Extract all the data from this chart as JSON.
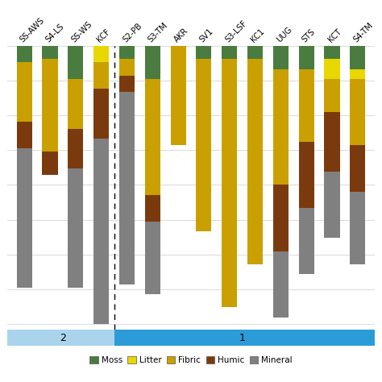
{
  "sites": [
    "SS-AWS",
    "S4-LS",
    "SS-WS",
    "KCF",
    "S2-PB",
    "S3-TM",
    "AKR",
    "SV1",
    "S3-LSF",
    "KC1",
    "UUG",
    "STS",
    "KCT",
    "S4-TM"
  ],
  "colors": {
    "Moss": "#4a7c3f",
    "Litter": "#e8d800",
    "Fibric": "#c9a000",
    "Humic": "#7b3a0e",
    "Mineral": "#808080"
  },
  "legend_order": [
    "Moss",
    "Litter",
    "Fibric",
    "Humic",
    "Mineral"
  ],
  "bar_data": {
    "SS-AWS": {
      "Moss": 5,
      "Litter": 0,
      "Fibric": 18,
      "Humic": 8,
      "Mineral": 42
    },
    "S4-LS": {
      "Moss": 4,
      "Litter": 0,
      "Fibric": 28,
      "Humic": 7,
      "Mineral": 0
    },
    "SS-WS": {
      "Moss": 10,
      "Litter": 0,
      "Fibric": 15,
      "Humic": 12,
      "Mineral": 36
    },
    "KCF": {
      "Moss": 0,
      "Litter": 5,
      "Fibric": 8,
      "Humic": 15,
      "Mineral": 56
    },
    "S2-PB": {
      "Moss": 4,
      "Litter": 0,
      "Fibric": 5,
      "Humic": 5,
      "Mineral": 58
    },
    "S3-TM": {
      "Moss": 10,
      "Litter": 0,
      "Fibric": 35,
      "Humic": 8,
      "Mineral": 22
    },
    "AKR": {
      "Moss": 0,
      "Litter": 0,
      "Fibric": 30,
      "Humic": 0,
      "Mineral": 0
    },
    "SV1": {
      "Moss": 4,
      "Litter": 0,
      "Fibric": 52,
      "Humic": 0,
      "Mineral": 0
    },
    "S3-LSF": {
      "Moss": 4,
      "Litter": 0,
      "Fibric": 75,
      "Humic": 0,
      "Mineral": 0
    },
    "KC1": {
      "Moss": 4,
      "Litter": 0,
      "Fibric": 62,
      "Humic": 0,
      "Mineral": 0
    },
    "UUG": {
      "Moss": 7,
      "Litter": 0,
      "Fibric": 35,
      "Humic": 20,
      "Mineral": 20
    },
    "STS": {
      "Moss": 7,
      "Litter": 0,
      "Fibric": 22,
      "Humic": 20,
      "Mineral": 20
    },
    "KCT": {
      "Moss": 4,
      "Litter": 6,
      "Fibric": 10,
      "Humic": 18,
      "Mineral": 20
    },
    "S4-TM": {
      "Moss": 7,
      "Litter": 3,
      "Fibric": 20,
      "Humic": 14,
      "Mineral": 22
    }
  },
  "figsize": [
    4.74,
    4.74
  ],
  "dpi": 100,
  "background_color": "#ffffff",
  "group2_color": "#aad4eb",
  "group1_color": "#2b9cd8",
  "bar_width": 0.6,
  "grid_color": "#dddddd",
  "dashed_line_x": 3.5
}
